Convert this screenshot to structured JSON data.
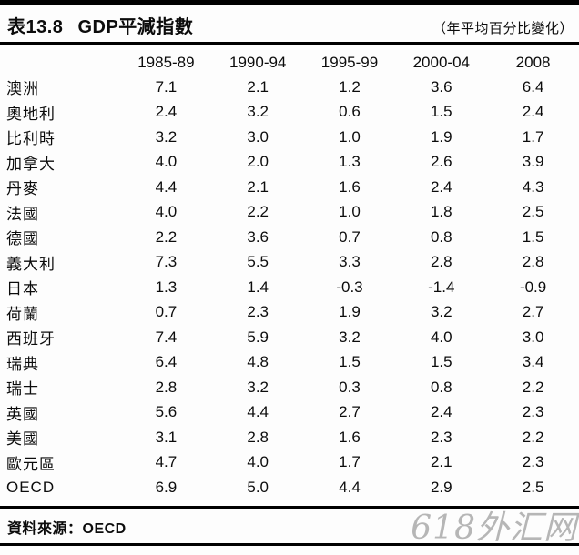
{
  "chart_data": {
    "type": "table",
    "table_label": "表13.8",
    "title": "GDP平減指數",
    "unit_note": "（年平均百分比變化）",
    "columns": [
      "1985-89",
      "1990-94",
      "1995-99",
      "2000-04",
      "2008"
    ],
    "rows": [
      {
        "label": "澳洲",
        "values": [
          "7.1",
          "2.1",
          "1.2",
          "3.6",
          "6.4"
        ]
      },
      {
        "label": "奧地利",
        "values": [
          "2.4",
          "3.2",
          "0.6",
          "1.5",
          "2.4"
        ]
      },
      {
        "label": "比利時",
        "values": [
          "3.2",
          "3.0",
          "1.0",
          "1.9",
          "1.7"
        ]
      },
      {
        "label": "加拿大",
        "values": [
          "4.0",
          "2.0",
          "1.3",
          "2.6",
          "3.9"
        ]
      },
      {
        "label": "丹麥",
        "values": [
          "4.4",
          "2.1",
          "1.6",
          "2.4",
          "4.3"
        ]
      },
      {
        "label": "法國",
        "values": [
          "4.0",
          "2.2",
          "1.0",
          "1.8",
          "2.5"
        ]
      },
      {
        "label": "德國",
        "values": [
          "2.2",
          "3.6",
          "0.7",
          "0.8",
          "1.5"
        ]
      },
      {
        "label": "義大利",
        "values": [
          "7.3",
          "5.5",
          "3.3",
          "2.8",
          "2.8"
        ]
      },
      {
        "label": "日本",
        "values": [
          "1.3",
          "1.4",
          "-0.3",
          "-1.4",
          "-0.9"
        ]
      },
      {
        "label": "荷蘭",
        "values": [
          "0.7",
          "2.3",
          "1.9",
          "3.2",
          "2.7"
        ]
      },
      {
        "label": "西班牙",
        "values": [
          "7.4",
          "5.9",
          "3.2",
          "4.0",
          "3.0"
        ]
      },
      {
        "label": "瑞典",
        "values": [
          "6.4",
          "4.8",
          "1.5",
          "1.5",
          "3.4"
        ]
      },
      {
        "label": "瑞士",
        "values": [
          "2.8",
          "3.2",
          "0.3",
          "0.8",
          "2.2"
        ]
      },
      {
        "label": "英國",
        "values": [
          "5.6",
          "4.4",
          "2.7",
          "2.4",
          "2.3"
        ]
      },
      {
        "label": "美國",
        "values": [
          "3.1",
          "2.8",
          "1.6",
          "2.3",
          "2.2"
        ]
      },
      {
        "label": "歐元區",
        "values": [
          "4.7",
          "4.0",
          "1.7",
          "2.1",
          "2.3"
        ]
      },
      {
        "label": "OECD",
        "values": [
          "6.9",
          "5.0",
          "4.4",
          "2.9",
          "2.5"
        ]
      }
    ],
    "source_note": "資料來源：OECD"
  },
  "watermark": "618外汇网",
  "colors": {
    "background": "#fdfdfd",
    "text": "#0c0c0c",
    "rule": "#000000",
    "watermark": "#b6b6b6"
  }
}
